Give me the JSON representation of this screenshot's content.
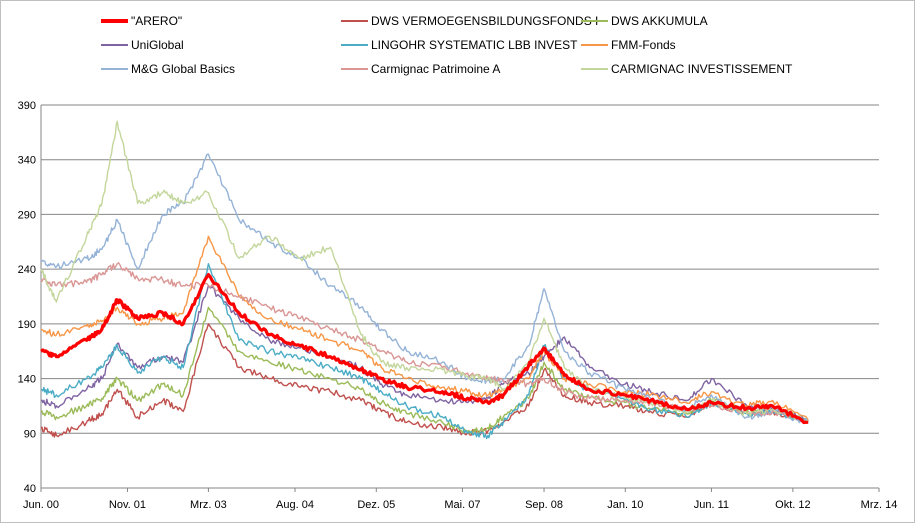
{
  "chart_data": {
    "type": "line",
    "title": "",
    "xlabel": "",
    "ylabel": "",
    "ylim": [
      40,
      390
    ],
    "yticks": [
      40,
      90,
      140,
      190,
      240,
      290,
      340,
      390
    ],
    "xlim": [
      "2000-06-01",
      "2014-03-01"
    ],
    "xtick_labels": [
      "Jun. 00",
      "Nov. 01",
      "Mrz. 03",
      "Aug. 04",
      "Dez. 05",
      "Mai. 07",
      "Sep. 08",
      "Jan. 10",
      "Jun. 11",
      "Okt. 12",
      "Mrz. 14"
    ],
    "xticks": [
      "2000-06-01",
      "2001-11-01",
      "2003-03-01",
      "2004-08-01",
      "2005-12-01",
      "2007-05-01",
      "2008-09-01",
      "2010-01-01",
      "2011-06-01",
      "2012-10-01",
      "2014-03-01"
    ],
    "grid": "horizontal",
    "legend_position": "top",
    "series": [
      {
        "name": "\"ARERO\"",
        "color": "#ff0000",
        "thick": true,
        "x": [
          "2000-06-01",
          "2000-09-01",
          "2001-03-01",
          "2001-06-01",
          "2001-09-01",
          "2002-01-01",
          "2002-06-01",
          "2002-10-01",
          "2003-03-01",
          "2003-09-01",
          "2004-03-01",
          "2004-09-01",
          "2005-03-01",
          "2005-09-01",
          "2006-01-01",
          "2006-06-01",
          "2007-01-01",
          "2007-06-01",
          "2007-10-01",
          "2008-01-01",
          "2008-06-01",
          "2008-09-01",
          "2009-01-01",
          "2009-06-01",
          "2010-01-01",
          "2010-06-01",
          "2011-01-01",
          "2011-06-01",
          "2012-01-01",
          "2012-06-01",
          "2013-01-01"
        ],
        "y": [
          165,
          160,
          175,
          185,
          212,
          195,
          200,
          190,
          235,
          200,
          180,
          170,
          160,
          148,
          140,
          132,
          128,
          122,
          118,
          125,
          152,
          168,
          143,
          130,
          125,
          120,
          112,
          118,
          113,
          115,
          100
        ]
      },
      {
        "name": "DWS VERMOEGENSBILDUNGSFONDS  I",
        "color": "#c0504d",
        "x": [
          "2000-06-01",
          "2000-09-01",
          "2001-03-01",
          "2001-06-01",
          "2001-09-01",
          "2002-01-01",
          "2002-06-01",
          "2002-10-01",
          "2003-03-01",
          "2003-09-01",
          "2004-03-01",
          "2004-09-01",
          "2005-03-01",
          "2005-09-01",
          "2006-01-01",
          "2006-06-01",
          "2007-01-01",
          "2007-06-01",
          "2007-10-01",
          "2008-01-01",
          "2008-06-01",
          "2008-09-01",
          "2009-01-01",
          "2009-06-01",
          "2010-01-01",
          "2010-06-01",
          "2011-01-01",
          "2011-06-01",
          "2012-01-01",
          "2012-06-01",
          "2013-01-01"
        ],
        "y": [
          95,
          88,
          100,
          108,
          130,
          105,
          120,
          110,
          190,
          150,
          140,
          132,
          128,
          120,
          110,
          100,
          95,
          90,
          92,
          100,
          115,
          148,
          125,
          118,
          115,
          110,
          105,
          118,
          108,
          110,
          101
        ]
      },
      {
        "name": "DWS AKKUMULA",
        "color": "#9bbb59",
        "x": [
          "2000-06-01",
          "2000-09-01",
          "2001-03-01",
          "2001-06-01",
          "2001-09-01",
          "2002-01-01",
          "2002-06-01",
          "2002-10-01",
          "2003-03-01",
          "2003-09-01",
          "2004-03-01",
          "2004-09-01",
          "2005-03-01",
          "2005-09-01",
          "2006-01-01",
          "2006-06-01",
          "2007-01-01",
          "2007-06-01",
          "2007-10-01",
          "2008-01-01",
          "2008-06-01",
          "2008-09-01",
          "2009-01-01",
          "2009-06-01",
          "2010-01-01",
          "2010-06-01",
          "2011-01-01",
          "2011-06-01",
          "2012-01-01",
          "2012-06-01",
          "2013-01-01"
        ],
        "y": [
          110,
          105,
          115,
          122,
          140,
          120,
          135,
          125,
          205,
          165,
          155,
          148,
          140,
          130,
          118,
          108,
          100,
          92,
          95,
          105,
          122,
          155,
          130,
          122,
          118,
          112,
          108,
          120,
          110,
          112,
          102
        ]
      },
      {
        "name": "UniGlobal",
        "color": "#8064a2",
        "x": [
          "2000-06-01",
          "2000-09-01",
          "2001-03-01",
          "2001-06-01",
          "2001-09-01",
          "2002-01-01",
          "2002-06-01",
          "2002-10-01",
          "2003-03-01",
          "2003-09-01",
          "2004-03-01",
          "2004-09-01",
          "2005-03-01",
          "2005-09-01",
          "2006-01-01",
          "2006-06-01",
          "2007-01-01",
          "2007-06-01",
          "2007-10-01",
          "2008-01-01",
          "2008-06-01",
          "2008-09-01",
          "2009-01-01",
          "2009-06-01",
          "2010-01-01",
          "2010-06-01",
          "2011-01-01",
          "2011-06-01",
          "2012-01-01",
          "2012-06-01",
          "2013-01-01"
        ],
        "y": [
          120,
          115,
          130,
          140,
          172,
          150,
          160,
          155,
          225,
          195,
          175,
          168,
          160,
          150,
          135,
          125,
          120,
          118,
          122,
          135,
          145,
          160,
          178,
          150,
          135,
          128,
          120,
          140,
          115,
          112,
          102
        ]
      },
      {
        "name": "LINGOHR SYSTEMATIC  LBB INVEST",
        "color": "#4bacc6",
        "x": [
          "2000-06-01",
          "2000-09-01",
          "2001-03-01",
          "2001-06-01",
          "2001-09-01",
          "2002-01-01",
          "2002-06-01",
          "2002-10-01",
          "2003-03-01",
          "2003-09-01",
          "2004-03-01",
          "2004-09-01",
          "2005-03-01",
          "2005-09-01",
          "2006-01-01",
          "2006-06-01",
          "2007-01-01",
          "2007-06-01",
          "2007-10-01",
          "2008-01-01",
          "2008-06-01",
          "2008-09-01",
          "2009-01-01",
          "2009-06-01",
          "2010-01-01",
          "2010-06-01",
          "2011-01-01",
          "2011-06-01",
          "2012-01-01",
          "2012-06-01",
          "2013-01-01"
        ],
        "y": [
          130,
          125,
          140,
          150,
          170,
          145,
          160,
          150,
          245,
          175,
          165,
          158,
          150,
          140,
          128,
          115,
          105,
          90,
          88,
          100,
          125,
          170,
          140,
          130,
          120,
          112,
          105,
          118,
          108,
          110,
          101
        ]
      },
      {
        "name": "FMM-Fonds",
        "color": "#f79646",
        "x": [
          "2000-06-01",
          "2000-09-01",
          "2001-03-01",
          "2001-06-01",
          "2001-09-01",
          "2002-01-01",
          "2002-06-01",
          "2002-10-01",
          "2003-03-01",
          "2003-09-01",
          "2004-03-01",
          "2004-09-01",
          "2005-03-01",
          "2005-09-01",
          "2006-01-01",
          "2006-06-01",
          "2007-01-01",
          "2007-06-01",
          "2007-10-01",
          "2008-01-01",
          "2008-06-01",
          "2008-09-01",
          "2009-01-01",
          "2009-06-01",
          "2010-01-01",
          "2010-06-01",
          "2011-01-01",
          "2011-06-01",
          "2012-01-01",
          "2012-06-01",
          "2013-01-01"
        ],
        "y": [
          185,
          180,
          188,
          192,
          205,
          190,
          195,
          200,
          270,
          215,
          195,
          185,
          175,
          165,
          150,
          140,
          132,
          128,
          125,
          130,
          140,
          165,
          140,
          135,
          128,
          125,
          118,
          128,
          115,
          120,
          102
        ]
      },
      {
        "name": "M&G Global Basics",
        "color": "#95b3d7",
        "x": [
          "2000-06-01",
          "2000-09-01",
          "2001-03-01",
          "2001-06-01",
          "2001-09-01",
          "2002-01-01",
          "2002-06-01",
          "2002-10-01",
          "2003-03-01",
          "2003-09-01",
          "2004-03-01",
          "2004-09-01",
          "2005-03-01",
          "2005-09-01",
          "2006-01-01",
          "2006-06-01",
          "2007-01-01",
          "2007-06-01",
          "2007-10-01",
          "2008-01-01",
          "2008-06-01",
          "2008-09-01",
          "2009-01-01",
          "2009-06-01",
          "2010-01-01",
          "2010-06-01",
          "2011-01-01",
          "2011-06-01",
          "2012-01-01",
          "2012-06-01",
          "2013-01-01"
        ],
        "y": [
          248,
          242,
          250,
          258,
          285,
          240,
          290,
          300,
          345,
          285,
          265,
          250,
          225,
          205,
          185,
          165,
          155,
          140,
          138,
          140,
          170,
          222,
          165,
          145,
          130,
          122,
          112,
          125,
          105,
          110,
          100
        ]
      },
      {
        "name": "Carmignac Patrimoine A",
        "color": "#d99694",
        "x": [
          "2000-06-01",
          "2000-09-01",
          "2001-03-01",
          "2001-06-01",
          "2001-09-01",
          "2002-01-01",
          "2002-06-01",
          "2002-10-01",
          "2003-03-01",
          "2003-09-01",
          "2004-03-01",
          "2004-09-01",
          "2005-03-01",
          "2005-09-01",
          "2006-01-01",
          "2006-06-01",
          "2007-01-01",
          "2007-06-01",
          "2007-10-01",
          "2008-01-01",
          "2008-06-01",
          "2008-09-01",
          "2009-01-01",
          "2009-06-01",
          "2010-01-01",
          "2010-06-01",
          "2011-01-01",
          "2011-06-01",
          "2012-01-01",
          "2012-06-01",
          "2013-01-01"
        ],
        "y": [
          230,
          225,
          228,
          235,
          245,
          232,
          230,
          225,
          225,
          215,
          205,
          195,
          185,
          175,
          165,
          155,
          150,
          145,
          140,
          138,
          135,
          140,
          128,
          122,
          120,
          118,
          112,
          115,
          108,
          110,
          102
        ]
      },
      {
        "name": "CARMIGNAC INVESTISSEMENT",
        "color": "#c3d69b",
        "x": [
          "2000-06-01",
          "2000-09-01",
          "2001-03-01",
          "2001-06-01",
          "2001-09-01",
          "2002-01-01",
          "2002-06-01",
          "2002-10-01",
          "2003-03-01",
          "2003-09-01",
          "2004-03-01",
          "2004-09-01",
          "2005-03-01",
          "2005-09-01",
          "2006-01-01",
          "2006-06-01",
          "2007-01-01",
          "2007-06-01",
          "2007-10-01",
          "2008-01-01",
          "2008-06-01",
          "2008-09-01",
          "2009-01-01",
          "2009-06-01",
          "2010-01-01",
          "2010-06-01",
          "2011-01-01",
          "2011-06-01",
          "2012-01-01",
          "2012-06-01",
          "2013-01-01"
        ],
        "y": [
          240,
          210,
          270,
          300,
          375,
          300,
          310,
          300,
          310,
          250,
          270,
          250,
          260,
          180,
          155,
          150,
          148,
          142,
          140,
          130,
          155,
          195,
          150,
          130,
          122,
          118,
          110,
          120,
          108,
          112,
          102
        ]
      }
    ]
  }
}
